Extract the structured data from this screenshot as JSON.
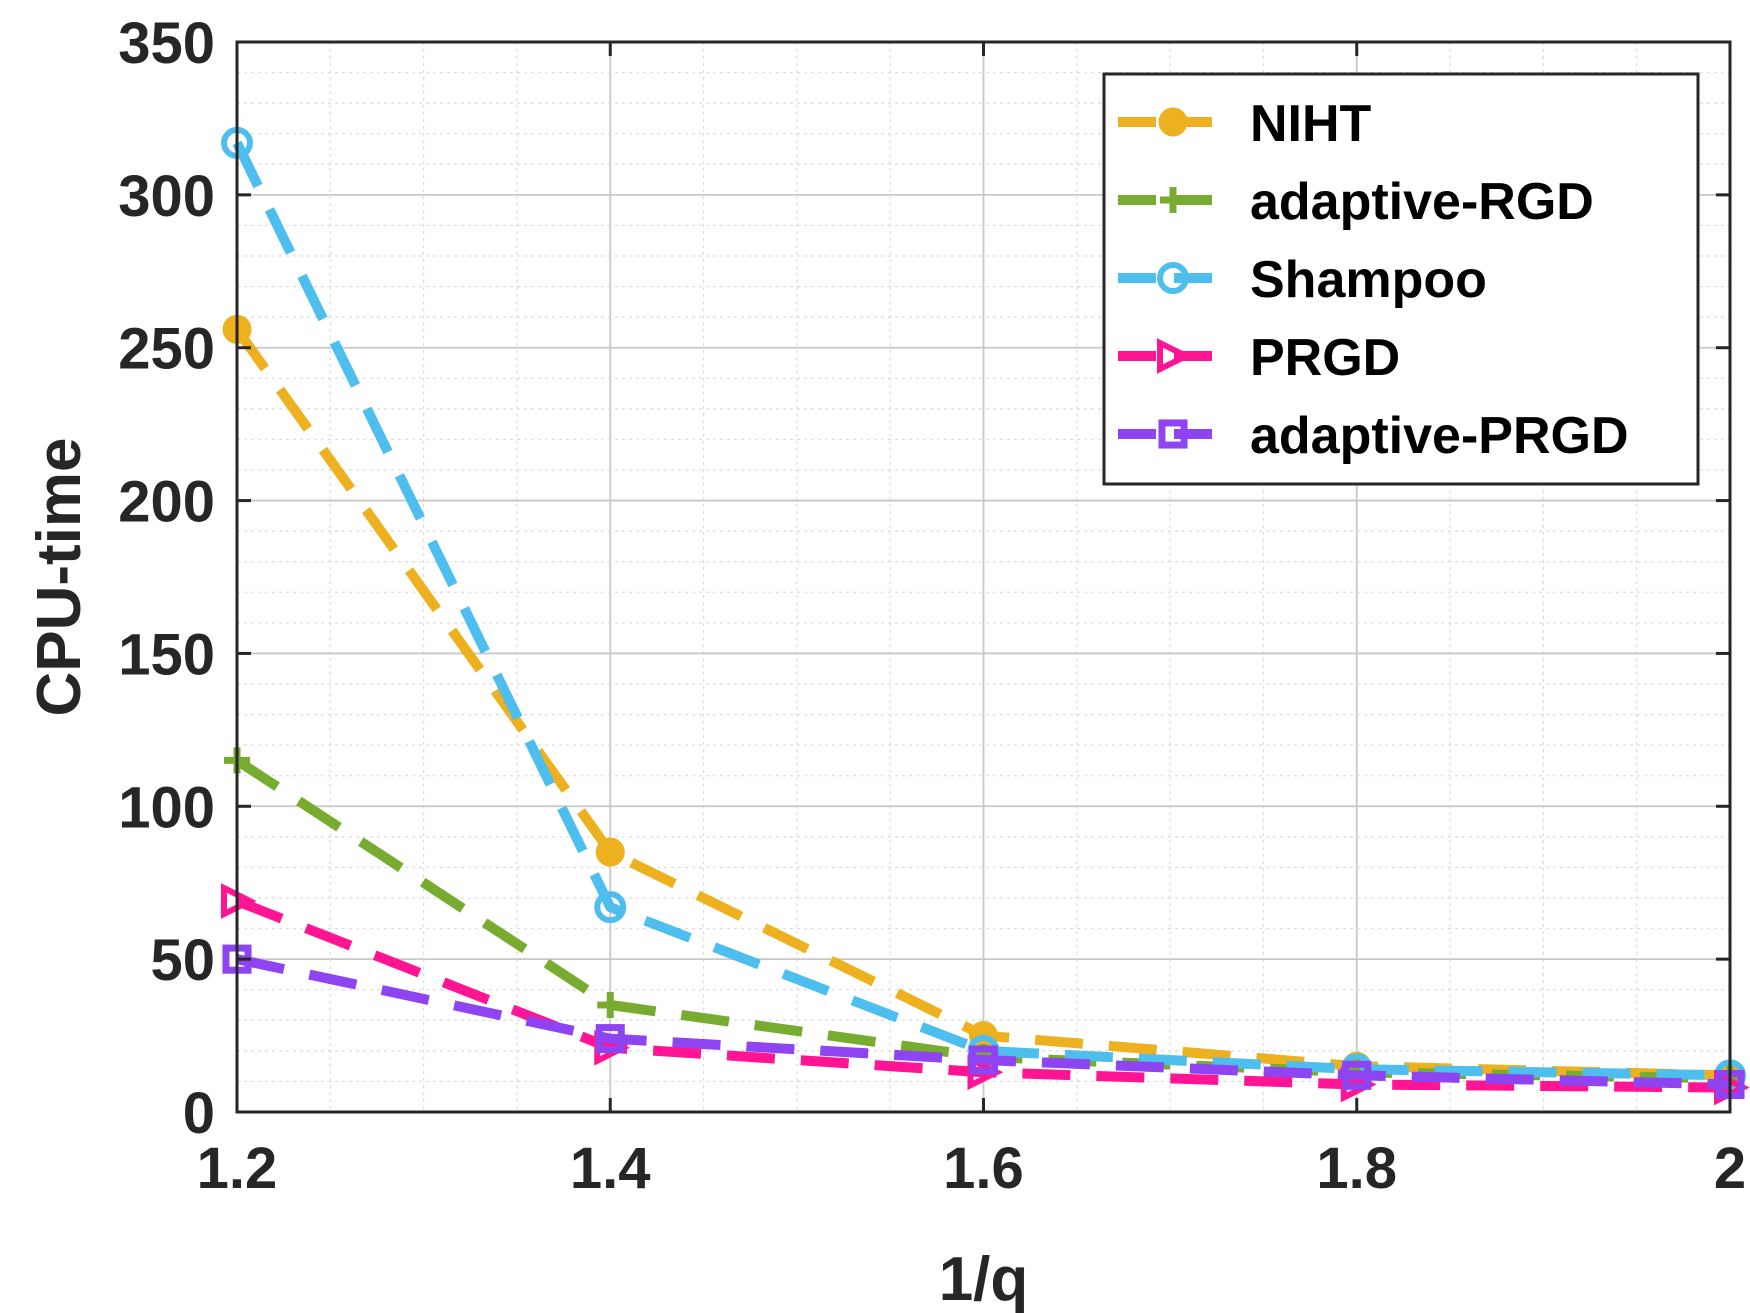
{
  "chart_data": {
    "type": "line",
    "title": "",
    "xlabel": "1/q",
    "ylabel": "CPU-time",
    "xlim": [
      1.2,
      2.0
    ],
    "ylim": [
      0,
      350
    ],
    "xticks": [
      1.2,
      1.4,
      1.6,
      1.8,
      2.0
    ],
    "xtick_labels": [
      "1.2",
      "1.4",
      "1.6",
      "1.8",
      "2"
    ],
    "yticks": [
      0,
      50,
      100,
      150,
      200,
      250,
      300,
      350
    ],
    "ytick_labels": [
      "0",
      "50",
      "100",
      "150",
      "200",
      "250",
      "300",
      "350"
    ],
    "grid": true,
    "minor_grid": true,
    "legend_position": "top-right",
    "x": [
      1.2,
      1.4,
      1.6,
      1.8,
      2.0
    ],
    "series": [
      {
        "name": "NIHT",
        "color": "#EDB120",
        "marker": "filled-circle",
        "values": [
          256,
          85,
          25,
          15,
          12
        ]
      },
      {
        "name": "adaptive-RGD",
        "color": "#77AC30",
        "marker": "plus",
        "values": [
          115,
          35,
          18,
          13,
          11
        ]
      },
      {
        "name": "Shampoo",
        "color": "#4DBEEE",
        "marker": "open-circle",
        "values": [
          317,
          67,
          20,
          14,
          12
        ]
      },
      {
        "name": "PRGD",
        "color": "#FF1493",
        "marker": "triangle-right",
        "values": [
          69,
          21,
          13,
          9,
          8
        ]
      },
      {
        "name": "adaptive-PRGD",
        "color": "#8E44F0",
        "marker": "open-square",
        "values": [
          50,
          24,
          17,
          12,
          9
        ]
      }
    ]
  }
}
